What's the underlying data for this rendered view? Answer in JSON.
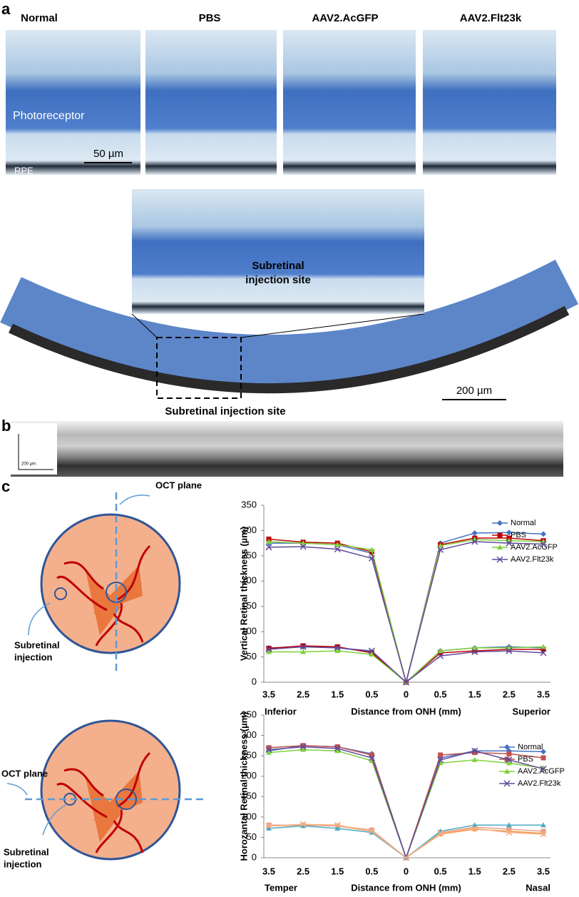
{
  "panels": {
    "a": "a",
    "b": "b",
    "c": "c"
  },
  "histology": {
    "titles": [
      "Normal",
      "PBS",
      "AAV2.AcGFP",
      "AAV2.Flt23k"
    ],
    "layer_labels": [
      "Photoreceptor",
      "RPE"
    ],
    "scale_bar": "50 µm",
    "inset_label": [
      "Subretinal",
      "injection site"
    ],
    "section_scale_bar": "200 µm",
    "section_label": "Subretinal injection site"
  },
  "oct": {
    "scale_bar": "200 µm"
  },
  "diagrams": [
    {
      "plane_label": "OCT plane",
      "injection_label": [
        "Subretinal",
        "injection"
      ]
    },
    {
      "plane_label": "OCT plane",
      "injection_label": [
        "Subretinal",
        "injection"
      ]
    }
  ],
  "chart_data": [
    {
      "type": "line",
      "y_label": "Vertical Retinal thickness (µm)",
      "x_label": "Distance from ONH (mm)",
      "x_end_labels": [
        "Inferior",
        "Superior"
      ],
      "categories": [
        "3.5",
        "2.5",
        "1.5",
        "0.5",
        "0",
        "0.5",
        "1.5",
        "2.5",
        "3.5"
      ],
      "ylim": [
        0,
        350
      ],
      "yticks": [
        0,
        50,
        100,
        150,
        200,
        250,
        300,
        350
      ],
      "legend": "right",
      "series": [
        {
          "name": "Normal",
          "color": "#4472c4",
          "marker": "diamond",
          "values": [
            275,
            275,
            272,
            255,
            0,
            275,
            295,
            296,
            293
          ],
          "lower_color": "#4472c4",
          "lower_values": [
            68,
            70,
            68,
            60,
            0,
            62,
            68,
            70,
            68
          ]
        },
        {
          "name": "PBS",
          "color": "#c00000",
          "marker": "square",
          "values": [
            283,
            277,
            275,
            258,
            0,
            272,
            285,
            285,
            280
          ],
          "lower_color": "#c00000",
          "lower_values": [
            67,
            72,
            70,
            58,
            0,
            58,
            62,
            65,
            65
          ]
        },
        {
          "name": "AAV2.AcGFP",
          "color": "#7fd13b",
          "marker": "triangle",
          "values": [
            278,
            275,
            272,
            262,
            0,
            270,
            282,
            280,
            278
          ],
          "lower_color": "#7fd13b",
          "lower_values": [
            60,
            60,
            62,
            55,
            0,
            62,
            68,
            68,
            70
          ]
        },
        {
          "name": "AAV2.Flt23k",
          "color": "#604a9b",
          "marker": "x",
          "values": [
            267,
            268,
            263,
            245,
            0,
            262,
            278,
            275,
            273
          ],
          "lower_color": "#604a9b",
          "lower_values": [
            65,
            70,
            68,
            62,
            0,
            52,
            60,
            62,
            58
          ]
        }
      ]
    },
    {
      "type": "line",
      "y_label": "Horozantal Retinal thickness (µm)",
      "x_label": "Distance from ONH (mm)",
      "x_end_labels": [
        "Temper",
        "Nasal"
      ],
      "categories": [
        "3.5",
        "2.5",
        "1.5",
        "0.5",
        "0",
        "0.5",
        "1.5",
        "2.5",
        "3.5"
      ],
      "ylim": [
        0,
        350
      ],
      "yticks": [
        0,
        50,
        100,
        150,
        200,
        250,
        300,
        350
      ],
      "legend": "right",
      "series": [
        {
          "name": "Normal",
          "color": "#4472c4",
          "marker": "diamond",
          "values": [
            262,
            275,
            272,
            255,
            0,
            245,
            262,
            262,
            260
          ],
          "lower_color": "#f79646",
          "lower_values": [
            78,
            80,
            78,
            65,
            0,
            58,
            70,
            65,
            60
          ]
        },
        {
          "name": "PBS",
          "color": "#c0504d",
          "marker": "square",
          "values": [
            270,
            275,
            272,
            252,
            0,
            252,
            258,
            255,
            245
          ],
          "lower_color": "#e6a08a",
          "lower_values": [
            80,
            80,
            78,
            68,
            0,
            62,
            75,
            70,
            65
          ]
        },
        {
          "name": "AAV2.AcGFP",
          "color": "#7fd13b",
          "marker": "triangle",
          "values": [
            258,
            265,
            262,
            238,
            0,
            232,
            240,
            232,
            220
          ],
          "lower_color": "#4bacc6",
          "lower_values": [
            72,
            78,
            72,
            62,
            0,
            65,
            80,
            80,
            80
          ]
        },
        {
          "name": "AAV2.Flt23k",
          "color": "#604a9b",
          "marker": "x",
          "values": [
            265,
            272,
            268,
            245,
            0,
            240,
            262,
            240,
            218
          ],
          "lower_color": "#f4b183",
          "lower_values": [
            78,
            82,
            80,
            65,
            0,
            60,
            72,
            62,
            58
          ]
        }
      ]
    }
  ]
}
